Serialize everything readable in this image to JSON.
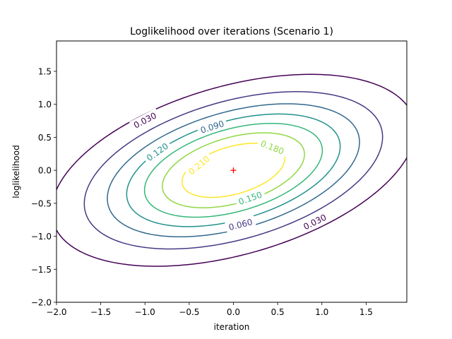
{
  "chart_data": {
    "type": "contour",
    "title": "Loglikelihood over iterations (Scenario 1)",
    "xlabel": "iteration",
    "ylabel": "loglikelihood",
    "xlim": [
      -2.0,
      1.96
    ],
    "ylim": [
      -2.0,
      1.96
    ],
    "xticks": [
      "−2.0",
      "−1.5",
      "−1.0",
      "−0.5",
      "0.0",
      "0.5",
      "1.0",
      "1.5"
    ],
    "yticks": [
      "−2.0",
      "−1.5",
      "−1.0",
      "−0.5",
      "0.0",
      "0.5",
      "1.0",
      "1.5"
    ],
    "xtick_values": [
      -2.0,
      -1.5,
      -1.0,
      -0.5,
      0.0,
      0.5,
      1.0,
      1.5
    ],
    "ytick_values": [
      -2.0,
      -1.5,
      -1.0,
      -0.5,
      0.0,
      0.5,
      1.0,
      1.5
    ],
    "grid": false,
    "distribution": {
      "mean": [
        0.0,
        0.0
      ],
      "cov": [
        [
          1.0,
          0.3
        ],
        [
          0.3,
          0.5
        ]
      ]
    },
    "levels": [
      {
        "value": 0.03,
        "label": "0.030",
        "color": "#440154"
      },
      {
        "value": 0.06,
        "label": "0.060",
        "color": "#443a83"
      },
      {
        "value": 0.09,
        "label": "0.090",
        "color": "#31688e"
      },
      {
        "value": 0.12,
        "label": "0.120",
        "color": "#21918c"
      },
      {
        "value": 0.15,
        "label": "0.150",
        "color": "#35b779"
      },
      {
        "value": 0.18,
        "label": "0.180",
        "color": "#90d743"
      },
      {
        "value": 0.21,
        "label": "0.210",
        "color": "#fde725"
      }
    ],
    "contour_labels": [
      {
        "level": 0.03,
        "text": "0.030",
        "x": -1.0,
        "y": 0.76
      },
      {
        "level": 0.03,
        "text": "0.030",
        "x": 0.92,
        "y": -0.78
      },
      {
        "level": 0.06,
        "text": "0.060",
        "x": 0.08,
        "y": -0.82
      },
      {
        "level": 0.09,
        "text": "0.090",
        "x": -0.24,
        "y": 0.66
      },
      {
        "level": 0.12,
        "text": "0.120",
        "x": -0.86,
        "y": 0.28
      },
      {
        "level": 0.15,
        "text": "0.150",
        "x": 0.19,
        "y": -0.42
      },
      {
        "level": 0.18,
        "text": "0.180",
        "x": 0.44,
        "y": 0.35
      },
      {
        "level": 0.21,
        "text": "0.210",
        "x": -0.39,
        "y": 0.08
      }
    ],
    "marker": {
      "x": 0.0,
      "y": 0.0,
      "symbol": "+",
      "color": "#ff0000"
    }
  }
}
